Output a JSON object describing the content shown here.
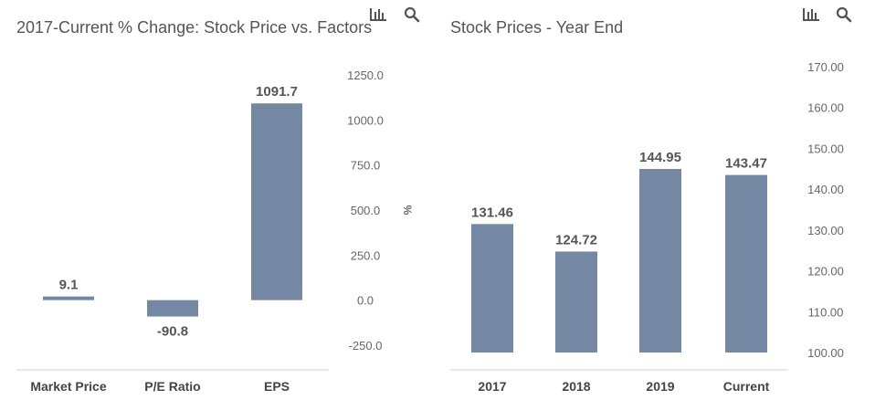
{
  "charts": [
    {
      "title": "2017-Current % Change: Stock Price vs. Factors",
      "icons": [
        "bar-chart-icon",
        "search-icon"
      ],
      "chart_data": {
        "type": "bar",
        "title": "2017-Current % Change: Stock Price vs. Factors",
        "categories": [
          "Market Price",
          "P/E Ratio",
          "EPS"
        ],
        "values": [
          9.1,
          -90.8,
          1091.7
        ],
        "data_labels": [
          "9.1",
          "-90.8",
          "1091.7"
        ],
        "ylabel": "%",
        "ylim": [
          -250,
          1250
        ],
        "yticks": [
          1250,
          1000,
          750,
          500,
          250,
          0,
          -250
        ],
        "ytick_labels": [
          "1250.0",
          "1000.0",
          "750.0",
          "500.0",
          "250.0",
          "0.0",
          "-250.0"
        ],
        "y_axis_side": "right",
        "grid": false,
        "bar_color": "#7588a3"
      }
    },
    {
      "title": "Stock Prices - Year End",
      "icons": [
        "bar-chart-icon",
        "search-icon"
      ],
      "chart_data": {
        "type": "bar",
        "title": "Stock Prices - Year End",
        "categories": [
          "2017",
          "2018",
          "2019",
          "Current"
        ],
        "values": [
          131.46,
          124.72,
          144.95,
          143.47
        ],
        "data_labels": [
          "131.46",
          "124.72",
          "144.95",
          "143.47"
        ],
        "ylabel": "",
        "ylim": [
          100,
          170
        ],
        "yticks": [
          170,
          160,
          150,
          140,
          130,
          120,
          110,
          100
        ],
        "ytick_labels": [
          "170.00",
          "160.00",
          "150.00",
          "140.00",
          "130.00",
          "120.00",
          "110.00",
          "100.00"
        ],
        "y_axis_side": "right",
        "grid": false,
        "bar_color": "#7588a3"
      }
    }
  ]
}
